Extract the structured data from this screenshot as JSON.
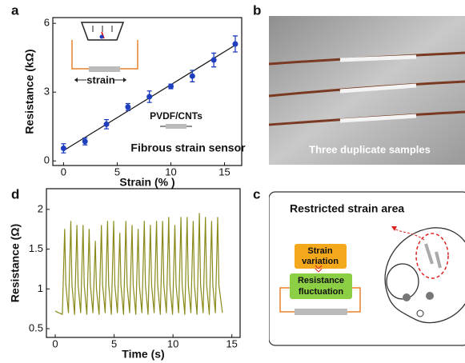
{
  "chart_data": [
    {
      "type": "scatter",
      "panel": "a",
      "xlabel": "Strain (% )",
      "ylabel": "Resistance (kΩ)",
      "x": [
        0,
        2,
        4,
        6,
        8,
        10,
        12,
        14,
        16
      ],
      "values": [
        0.55,
        0.85,
        1.6,
        2.35,
        2.8,
        3.25,
        3.7,
        4.4,
        5.1
      ],
      "errors": [
        0.2,
        0.15,
        0.2,
        0.15,
        0.25,
        0.1,
        0.25,
        0.3,
        0.35
      ],
      "color": "#1f3fbf",
      "trend_line": {
        "x": [
          0,
          16
        ],
        "values": [
          0.45,
          5.05
        ],
        "color": "#111111"
      },
      "xlim": [
        -1,
        16.6
      ],
      "ylim": [
        -0.2,
        6.25
      ],
      "xticks": [
        0,
        5,
        10,
        15
      ],
      "yticks": [
        0,
        3,
        6
      ],
      "inset_label": "strain",
      "material_label": "PVDF/CNTs",
      "caption": "Fibrous strain sensor"
    },
    {
      "type": "line",
      "panel": "d",
      "xlabel": "Time (s)",
      "ylabel": "Resistance (Ω)",
      "color": "#8a8a1a",
      "x": [
        0,
        0.6,
        0.8,
        0.9,
        1.12,
        1.32,
        1.42,
        1.64,
        1.84,
        1.94,
        2.16,
        2.36,
        2.46,
        2.68,
        2.88,
        2.98,
        3.2,
        3.4,
        3.5,
        3.72,
        3.92,
        4.02,
        4.24,
        4.44,
        4.54,
        4.76,
        4.96,
        5.06,
        5.28,
        5.48,
        5.58,
        5.8,
        6.0,
        6.1,
        6.32,
        6.52,
        6.62,
        6.84,
        7.04,
        7.14,
        7.36,
        7.56,
        7.66,
        7.88,
        8.08,
        8.18,
        8.4,
        8.6,
        8.7,
        8.92,
        9.12,
        9.22,
        9.44,
        9.64,
        9.74,
        9.96,
        10.16,
        10.26,
        10.48,
        10.68,
        10.78,
        11.0,
        11.2,
        11.3,
        11.52,
        11.72,
        11.82,
        12.04,
        12.24,
        12.34,
        12.56,
        12.76,
        12.86,
        13.08,
        13.28,
        13.38,
        13.6,
        13.8,
        13.9,
        14.2
      ],
      "values": [
        0.72,
        0.68,
        1.75,
        1.05,
        0.7,
        1.85,
        1.05,
        0.68,
        1.8,
        1.05,
        0.7,
        1.8,
        1.05,
        0.68,
        1.75,
        1.05,
        0.7,
        1.6,
        1.0,
        0.68,
        1.8,
        1.05,
        0.7,
        1.85,
        1.05,
        0.68,
        1.85,
        1.05,
        0.7,
        1.7,
        1.05,
        0.68,
        1.85,
        1.05,
        0.7,
        1.8,
        1.05,
        0.68,
        1.75,
        1.05,
        0.7,
        1.85,
        1.05,
        0.68,
        1.8,
        1.05,
        0.7,
        1.85,
        1.05,
        0.68,
        1.85,
        1.05,
        0.7,
        1.9,
        1.05,
        0.68,
        1.8,
        1.05,
        0.7,
        1.9,
        1.05,
        0.68,
        1.9,
        1.05,
        0.7,
        1.85,
        1.05,
        0.68,
        1.95,
        1.05,
        0.7,
        1.9,
        1.05,
        0.68,
        1.85,
        1.05,
        0.7,
        1.9,
        1.05,
        0.7
      ],
      "xlim": [
        -0.75,
        15.7
      ],
      "ylim": [
        0.39,
        2.26
      ],
      "xticks": [
        0,
        5,
        10,
        15
      ],
      "yticks": [
        0.5,
        1,
        1.5,
        2
      ]
    }
  ],
  "panel_b": {
    "label": "b",
    "caption": "Three duplicate samples"
  },
  "panel_c": {
    "label": "c",
    "title": "Restricted strain area",
    "strain_box": [
      "Strain",
      "variation"
    ],
    "resistance_box": [
      "Resistance",
      "fluctuation"
    ]
  }
}
